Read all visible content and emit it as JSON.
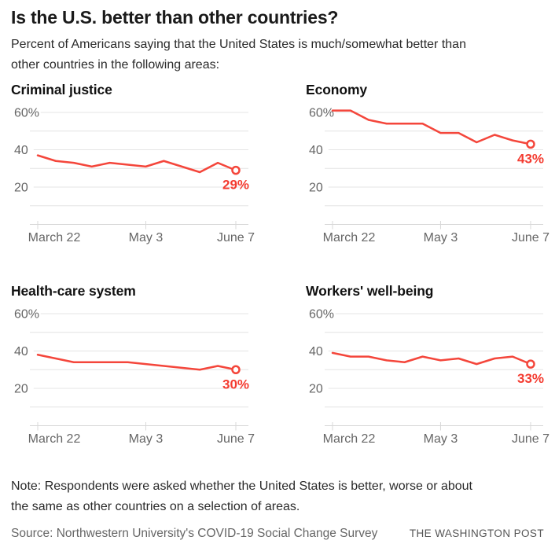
{
  "header": {
    "title": "Is the U.S. better than other countries?",
    "subtitle_line1": "Percent of Americans saying that the United States is much/somewhat better than",
    "subtitle_line2": "other countries in the following areas:"
  },
  "colors": {
    "line_red": "#F4463B",
    "label_red": "#F43B30",
    "grid": "#E4E4E4",
    "axis": "#D8D8D8",
    "tick_text": "#666666"
  },
  "axes": {
    "y_gridlines": [
      {
        "value": 60,
        "label": "60%"
      },
      {
        "value": 50,
        "label": ""
      },
      {
        "value": 40,
        "label": "40"
      },
      {
        "value": 30,
        "label": ""
      },
      {
        "value": 20,
        "label": "20"
      },
      {
        "value": 10,
        "label": ""
      }
    ],
    "x_ticks": [
      {
        "label": "March 22",
        "week": 0
      },
      {
        "label": "May 3",
        "week": 6
      },
      {
        "label": "June 7",
        "week": 11
      }
    ],
    "ylim": [
      0,
      65
    ],
    "points_per_series": 12,
    "grid": "on"
  },
  "chart_data": [
    {
      "type": "line",
      "title": "Criminal justice",
      "values": [
        37,
        34,
        33,
        31,
        33,
        32,
        31,
        34,
        31,
        28,
        33,
        29
      ],
      "end_label": "29%"
    },
    {
      "type": "line",
      "title": "Economy",
      "values": [
        61,
        61,
        56,
        54,
        54,
        54,
        49,
        49,
        44,
        48,
        45,
        43
      ],
      "end_label": "43%"
    },
    {
      "type": "line",
      "title": "Health-care system",
      "values": [
        38,
        36,
        34,
        34,
        34,
        34,
        33,
        32,
        31,
        30,
        32,
        30
      ],
      "end_label": "30%"
    },
    {
      "type": "line",
      "title": "Workers' well-being",
      "values": [
        39,
        37,
        37,
        35,
        34,
        37,
        35,
        36,
        33,
        36,
        37,
        33
      ],
      "end_label": "33%"
    }
  ],
  "footer": {
    "note_line1": "Note: Respondents were asked whether the United States is better, worse or about",
    "note_line2": "the same as other countries on a selection of areas.",
    "source": "Source: Northwestern University's COVID-19 Social Change Survey",
    "brand": "THE WASHINGTON POST"
  }
}
